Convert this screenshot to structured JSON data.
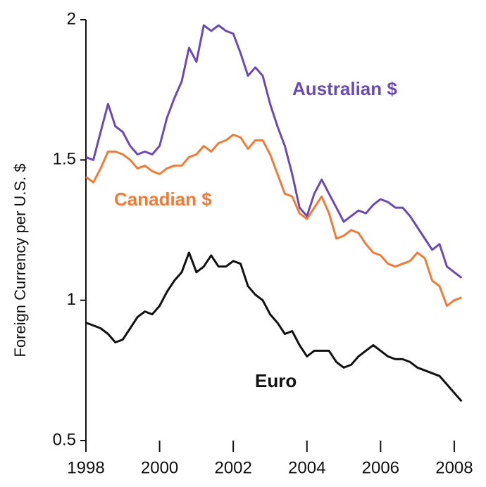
{
  "chart_data": {
    "type": "line",
    "y_label": "Foreign Currency per U.S. $",
    "x": [
      1998.0,
      1998.2,
      1998.4,
      1998.6,
      1998.8,
      1999.0,
      1999.2,
      1999.4,
      1999.6,
      1999.8,
      2000.0,
      2000.2,
      2000.4,
      2000.6,
      2000.8,
      2001.0,
      2001.2,
      2001.4,
      2001.6,
      2001.8,
      2002.0,
      2002.2,
      2002.4,
      2002.6,
      2002.8,
      2003.0,
      2003.2,
      2003.4,
      2003.6,
      2003.8,
      2004.0,
      2004.2,
      2004.4,
      2004.6,
      2004.8,
      2005.0,
      2005.2,
      2005.4,
      2005.6,
      2005.8,
      2006.0,
      2006.2,
      2006.4,
      2006.6,
      2006.8,
      2007.0,
      2007.2,
      2007.4,
      2007.6,
      2007.8,
      2008.0,
      2008.2
    ],
    "series": [
      {
        "name": "Australian $",
        "color": "#6a4bb5",
        "values": [
          1.51,
          1.5,
          1.6,
          1.7,
          1.62,
          1.6,
          1.55,
          1.52,
          1.53,
          1.52,
          1.55,
          1.65,
          1.72,
          1.78,
          1.9,
          1.85,
          1.98,
          1.96,
          1.98,
          1.96,
          1.95,
          1.88,
          1.8,
          1.83,
          1.8,
          1.7,
          1.62,
          1.55,
          1.45,
          1.33,
          1.3,
          1.38,
          1.43,
          1.38,
          1.33,
          1.28,
          1.3,
          1.32,
          1.31,
          1.34,
          1.36,
          1.35,
          1.33,
          1.33,
          1.3,
          1.26,
          1.22,
          1.18,
          1.2,
          1.12,
          1.1,
          1.08
        ]
      },
      {
        "name": "Canadian $",
        "color": "#f07b36",
        "values": [
          1.44,
          1.42,
          1.47,
          1.53,
          1.53,
          1.52,
          1.5,
          1.47,
          1.48,
          1.46,
          1.45,
          1.47,
          1.48,
          1.48,
          1.51,
          1.52,
          1.55,
          1.53,
          1.56,
          1.57,
          1.59,
          1.58,
          1.54,
          1.57,
          1.57,
          1.52,
          1.45,
          1.38,
          1.37,
          1.31,
          1.29,
          1.33,
          1.37,
          1.31,
          1.22,
          1.23,
          1.25,
          1.24,
          1.2,
          1.17,
          1.16,
          1.13,
          1.12,
          1.13,
          1.14,
          1.17,
          1.15,
          1.07,
          1.05,
          0.98,
          1.0,
          1.01
        ]
      },
      {
        "name": "Euro",
        "color": "#111111",
        "values": [
          0.92,
          0.91,
          0.9,
          0.88,
          0.85,
          0.86,
          0.9,
          0.94,
          0.96,
          0.95,
          0.98,
          1.03,
          1.07,
          1.1,
          1.17,
          1.1,
          1.12,
          1.16,
          1.12,
          1.12,
          1.14,
          1.13,
          1.05,
          1.02,
          1.0,
          0.95,
          0.92,
          0.88,
          0.89,
          0.84,
          0.8,
          0.82,
          0.82,
          0.82,
          0.78,
          0.76,
          0.77,
          0.8,
          0.82,
          0.84,
          0.82,
          0.8,
          0.79,
          0.79,
          0.78,
          0.76,
          0.75,
          0.74,
          0.73,
          0.7,
          0.67,
          0.64
        ]
      }
    ],
    "xlim": [
      1998,
      2008.25
    ],
    "xticks": [
      1998,
      2000,
      2002,
      2004,
      2006,
      2008
    ],
    "ylim": [
      0.5,
      2
    ],
    "yticks": [
      0.5,
      1,
      1.5,
      2
    ]
  }
}
